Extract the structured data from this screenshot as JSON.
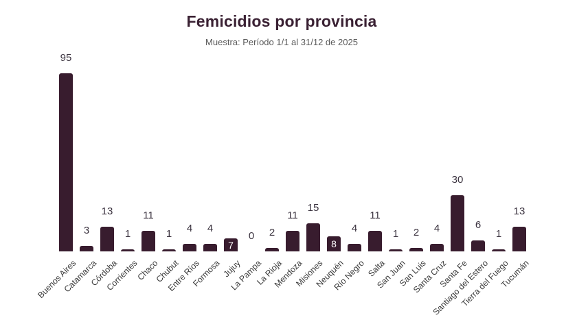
{
  "header": {
    "title": "Femicidios por provincia",
    "subtitle": "Muestra: Período 1/1 al 31/12 de 2025"
  },
  "chart_data": {
    "type": "bar",
    "title": "Femicidios por provincia",
    "subtitle": "Muestra: Período 1/1 al 31/12 de 2025",
    "categories": [
      "Buenos Aires",
      "Catamarca",
      "Córdoba",
      "Corrientes",
      "Chaco",
      "Chubut",
      "Entre Ríos",
      "Formosa",
      "Jujuy",
      "La Pampa",
      "La Rioja",
      "Mendoza",
      "Misiones",
      "Neuquén",
      "Río Negro",
      "Salta",
      "San Juan",
      "San Luis",
      "Santa Cruz",
      "Santa Fe",
      "Santiago del Estero",
      "Tierra del Fuego",
      "Tucumán"
    ],
    "values": [
      95,
      3,
      13,
      1,
      11,
      1,
      4,
      4,
      7,
      0,
      2,
      11,
      15,
      8,
      4,
      11,
      1,
      2,
      4,
      30,
      6,
      1,
      13
    ],
    "labels_inside_bar": [
      "Jujuy",
      "Neuquén"
    ],
    "bar_color": "#381c2e",
    "value_label_color": "#3c3440",
    "inside_label_color": "#ffffff",
    "xlabel": "",
    "ylabel": "",
    "ylim": [
      0,
      95
    ],
    "grid": false,
    "legend": false
  }
}
